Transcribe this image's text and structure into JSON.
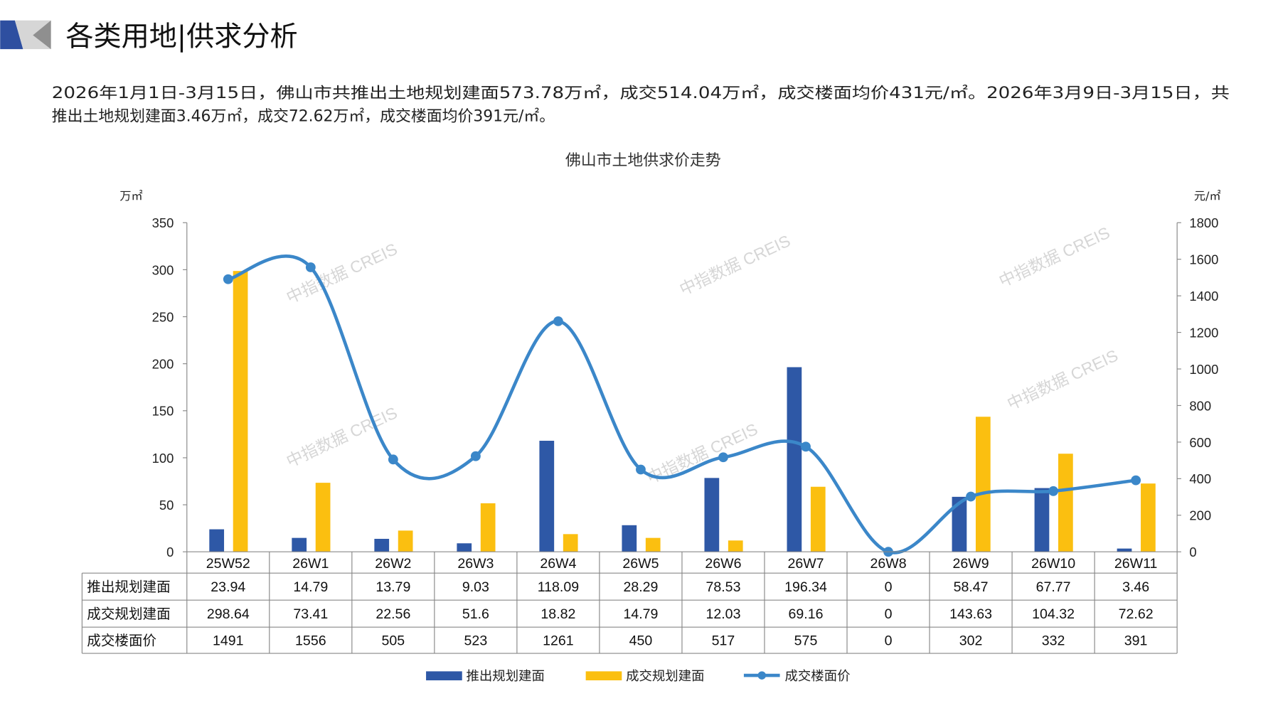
{
  "header": {
    "title": "各类用地|供求分析",
    "paragraph_line1": "2026年1月1日-3月15日，佛山市共推出土地规划建面573.78万㎡，成交514.04万㎡，成交楼面均价431元/㎡。2026年3月9日-3月15日，共",
    "paragraph_line2": "推出土地规划建面3.46万㎡，成交72.62万㎡，成交楼面均价391元/㎡。"
  },
  "watermark": "中指数据 CREIS",
  "colors": {
    "supply": "#2e58a6",
    "deal": "#fbbf10",
    "price": "#3b87c9"
  },
  "chart_data": {
    "type": "bar+line",
    "title": "佛山市土地供求价走势",
    "ylabel_left": "万㎡",
    "ylabel_right": "元/㎡",
    "ylim_left": [
      0,
      350
    ],
    "yticks_left": [
      0,
      50,
      100,
      150,
      200,
      250,
      300,
      350
    ],
    "ylim_right": [
      0,
      1800
    ],
    "yticks_right": [
      0,
      200,
      400,
      600,
      800,
      1000,
      1200,
      1400,
      1600,
      1800
    ],
    "categories": [
      "25W52",
      "26W1",
      "26W2",
      "26W3",
      "26W4",
      "26W5",
      "26W6",
      "26W7",
      "26W8",
      "26W9",
      "26W10",
      "26W11"
    ],
    "series": [
      {
        "name": "推出规划建面",
        "type": "bar",
        "axis": "left",
        "values": [
          23.94,
          14.79,
          13.79,
          9.03,
          118.09,
          28.29,
          78.53,
          196.34,
          0,
          58.47,
          67.77,
          3.46
        ],
        "labels": [
          "23.94",
          "14.79",
          "13.79",
          "9.03",
          "118.09",
          "28.29",
          "78.53",
          "196.34",
          "0",
          "58.47",
          "67.77",
          "3.46"
        ]
      },
      {
        "name": "成交规划建面",
        "type": "bar",
        "axis": "left",
        "values": [
          298.64,
          73.41,
          22.56,
          51.6,
          18.82,
          14.79,
          12.03,
          69.16,
          0,
          143.63,
          104.32,
          72.62
        ],
        "labels": [
          "298.64",
          "73.41",
          "22.56",
          "51.6",
          "18.82",
          "14.79",
          "12.03",
          "69.16",
          "0",
          "143.63",
          "104.32",
          "72.62"
        ]
      },
      {
        "name": "成交楼面价",
        "type": "line",
        "axis": "right",
        "values": [
          1491,
          1556,
          505,
          523,
          1261,
          450,
          517,
          575,
          0,
          302,
          332,
          391
        ],
        "labels": [
          "1491",
          "1556",
          "505",
          "523",
          "1261",
          "450",
          "517",
          "575",
          "0",
          "302",
          "332",
          "391"
        ]
      }
    ],
    "legend": "bottom",
    "data_table": true
  }
}
